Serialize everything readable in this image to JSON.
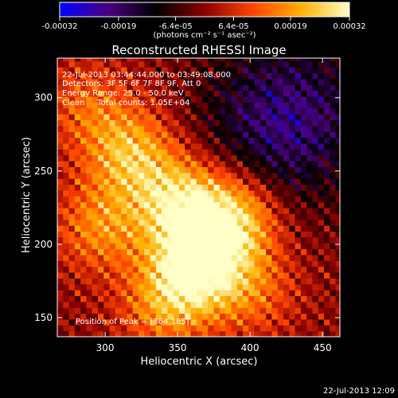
{
  "chart_data": {
    "type": "heatmap",
    "title": "Reconstructed RHESSI Image",
    "xlabel": "Heliocentric X (arcsec)",
    "ylabel": "Heliocentric Y (arcsec)",
    "xlim": [
      267,
      462
    ],
    "ylim": [
      137,
      327
    ],
    "x_ticks": [
      300,
      350,
      400,
      450
    ],
    "y_ticks": [
      150,
      200,
      250,
      300
    ],
    "colorbar": {
      "ticks": [
        "-0.00032",
        "-0.00019",
        "-6.4e-05",
        "6.4e-05",
        "0.00019",
        "0.00032"
      ],
      "tick_values": [
        -0.00032,
        -0.00019,
        -6.4e-05,
        6.4e-05,
        0.00019,
        0.00032
      ],
      "range": [
        -0.00032,
        0.00032
      ],
      "units_text": "(photons cm⁻² s⁻¹ asec⁻²)",
      "colormap": [
        "#0000ff",
        "#4b0082",
        "#000000",
        "#8b0000",
        "#ff4500",
        "#ffb000",
        "#ffffc8"
      ]
    },
    "annotations": [
      "22-Jul-2013 03:44:44.000 to 03:49:08.000",
      "Detectors: 3F 5F 6F 7F 8F 9F, Att 0",
      "Energy Range: 25.0 - 50.0 keV",
      "Clean     Total counts: 1.05E+04"
    ],
    "peak_label": "Position of Peak = [364,185]",
    "peak": [
      364,
      185
    ],
    "sources": [
      {
        "x": 364,
        "y": 185,
        "amp": 0.00032
      },
      {
        "x": 352,
        "y": 228,
        "amp": 0.00026
      },
      {
        "x": 389,
        "y": 218,
        "amp": 0.00026
      },
      {
        "x": 318,
        "y": 262,
        "amp": 0.00022
      },
      {
        "x": 297,
        "y": 212,
        "amp": 0.00017
      },
      {
        "x": 340,
        "y": 158,
        "amp": 0.00016
      },
      {
        "x": 288,
        "y": 295,
        "amp": 0.00012
      },
      {
        "x": 403,
        "y": 168,
        "amp": 0.00012
      }
    ],
    "negative_region": {
      "x": 425,
      "y": 285,
      "amp": -0.00021
    },
    "grid": false
  },
  "footer": {
    "date": "22-Jul-2013 12:09"
  }
}
